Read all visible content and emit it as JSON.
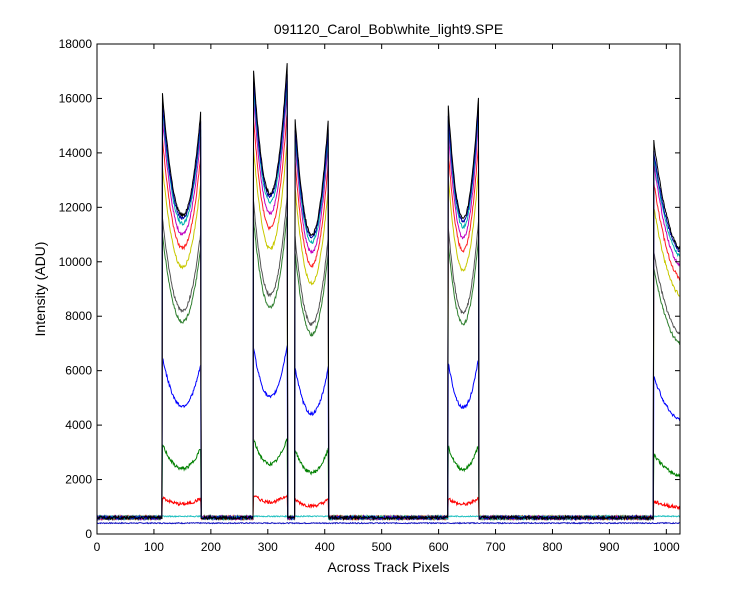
{
  "chart_data": {
    "type": "line",
    "title": "091120_Carol_Bob\\white_light9.SPE",
    "xlabel": "Across Track Pixels",
    "ylabel": "Intensity (ADU)",
    "xlim": [
      0,
      1024
    ],
    "ylim": [
      0,
      18000
    ],
    "xticks": [
      0,
      100,
      200,
      300,
      400,
      500,
      600,
      700,
      800,
      900,
      1000
    ],
    "yticks": [
      0,
      2000,
      4000,
      6000,
      8000,
      10000,
      12000,
      14000,
      16000,
      18000
    ],
    "grid": false,
    "legend": "none",
    "baseline_value": 600,
    "plateaus": [
      {
        "start": 115,
        "end": 182,
        "center": 150
      },
      {
        "start": 275,
        "end": 334,
        "center": 304
      },
      {
        "start": 348,
        "end": 406,
        "center": 377
      },
      {
        "start": 617,
        "end": 670,
        "center": 643
      },
      {
        "start": 978,
        "end": 1024,
        "center": 1030
      }
    ],
    "series": [
      {
        "color": "#1515c0",
        "values_note": "",
        "peak": 400,
        "dip": 400,
        "flat": true
      },
      {
        "color": "#20c0c0",
        "peak": 650,
        "dip": 650,
        "flat": true
      },
      {
        "color": "#ff0000",
        "peak": 1350,
        "dip": 1100
      },
      {
        "color": "#008000",
        "peak": 3300,
        "dip": 2400
      },
      {
        "color": "#0000ff",
        "peak": 6500,
        "dip": 4700
      },
      {
        "color": "#2f7f2f",
        "peak": 11000,
        "dip": 7800
      },
      {
        "color": "#555555",
        "peak": 11600,
        "dip": 8200
      },
      {
        "color": "#c8c800",
        "peak": 13500,
        "dip": 9800
      },
      {
        "color": "#ff2020",
        "peak": 14500,
        "dip": 10500
      },
      {
        "color": "#c000c0",
        "peak": 15300,
        "dip": 11000
      },
      {
        "color": "#00b0b0",
        "peak": 15600,
        "dip": 11400
      },
      {
        "color": "#0000aa",
        "peak": 15800,
        "dip": 11600
      },
      {
        "color": "#000000",
        "peak": 16200,
        "dip": 11700
      }
    ],
    "peak_scale": [
      1.0,
      1.07,
      0.94,
      0.99,
      0.89
    ]
  }
}
